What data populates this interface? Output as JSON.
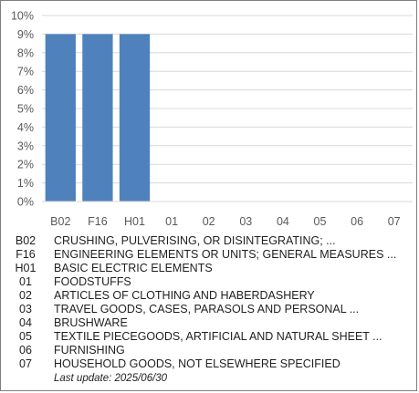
{
  "chart_data": {
    "type": "bar",
    "categories": [
      "B02",
      "F16",
      "H01",
      "01",
      "02",
      "03",
      "04",
      "05",
      "06",
      "07"
    ],
    "values": [
      9,
      9,
      9,
      0,
      0,
      0,
      0,
      0,
      0,
      0
    ],
    "ylim": [
      0,
      10
    ],
    "yticks": [
      "0%",
      "1%",
      "2%",
      "3%",
      "4%",
      "5%",
      "6%",
      "7%",
      "8%",
      "9%",
      "10%"
    ],
    "grid": true,
    "bar_color": "#4f81bd",
    "grid_color": "#d9d9d9",
    "title": "",
    "xlabel": "",
    "ylabel": ""
  },
  "legend": [
    {
      "code": "B02",
      "desc": "CRUSHING, PULVERISING, OR DISINTEGRATING; ..."
    },
    {
      "code": "F16",
      "desc": "ENGINEERING ELEMENTS OR UNITS; GENERAL MEASURES ..."
    },
    {
      "code": "H01",
      "desc": "BASIC ELECTRIC ELEMENTS"
    },
    {
      "code": "01",
      "desc": "FOODSTUFFS"
    },
    {
      "code": "02",
      "desc": "ARTICLES OF CLOTHING AND HABERDASHERY"
    },
    {
      "code": "03",
      "desc": "TRAVEL GOODS, CASES, PARASOLS AND PERSONAL ..."
    },
    {
      "code": "04",
      "desc": "BRUSHWARE"
    },
    {
      "code": "05",
      "desc": "TEXTILE PIECEGOODS, ARTIFICIAL AND NATURAL SHEET ..."
    },
    {
      "code": "06",
      "desc": "FURNISHING"
    },
    {
      "code": "07",
      "desc": "HOUSEHOLD GOODS, NOT ELSEWHERE SPECIFIED"
    }
  ],
  "footer": {
    "last_update_label": "Last update:",
    "last_update_value": "2025/06/30"
  }
}
